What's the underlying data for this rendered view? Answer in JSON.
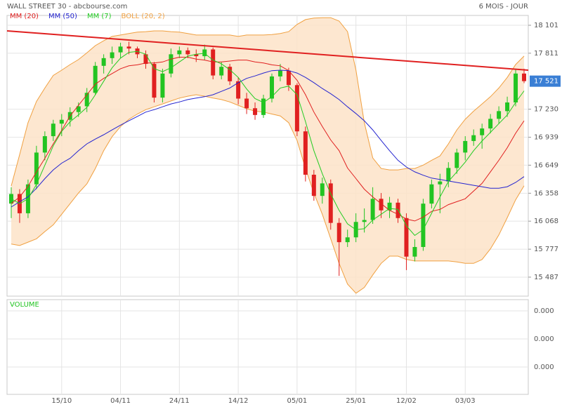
{
  "chart_data": {
    "type": "candlestick",
    "title": "WALL STREET 30 - abcbourse.com",
    "subtitle": "6 MOIS - JOUR",
    "categories": [
      null,
      null,
      null,
      null,
      null,
      null,
      "15/10",
      null,
      null,
      null,
      null,
      null,
      null,
      "04/11",
      null,
      null,
      null,
      null,
      null,
      null,
      "24/11",
      null,
      null,
      null,
      null,
      null,
      null,
      "14/12",
      null,
      null,
      null,
      null,
      null,
      null,
      "05/01",
      null,
      null,
      null,
      null,
      null,
      null,
      "25/01",
      null,
      null,
      null,
      null,
      null,
      "12/02",
      null,
      null,
      null,
      null,
      null,
      null,
      "03/03",
      null,
      null,
      null,
      null,
      null,
      null,
      null
    ],
    "ohlc": [
      [
        16250,
        16420,
        16100,
        16350
      ],
      [
        16350,
        16400,
        16050,
        16150
      ],
      [
        16150,
        16500,
        16100,
        16450
      ],
      [
        16450,
        16850,
        16400,
        16780
      ],
      [
        16780,
        17000,
        16700,
        16950
      ],
      [
        16950,
        17120,
        16900,
        17080
      ],
      [
        17080,
        17180,
        16950,
        17120
      ],
      [
        17120,
        17250,
        17050,
        17200
      ],
      [
        17200,
        17300,
        17150,
        17260
      ],
      [
        17260,
        17450,
        17200,
        17400
      ],
      [
        17400,
        17720,
        17380,
        17680
      ],
      [
        17680,
        17800,
        17600,
        17760
      ],
      [
        17760,
        17880,
        17700,
        17820
      ],
      [
        17820,
        17920,
        17760,
        17880
      ],
      [
        17880,
        17930,
        17800,
        17860
      ],
      [
        17860,
        17880,
        17760,
        17800
      ],
      [
        17800,
        17840,
        17650,
        17700
      ],
      [
        17700,
        17720,
        17300,
        17350
      ],
      [
        17350,
        17650,
        17300,
        17600
      ],
      [
        17600,
        17860,
        17560,
        17800
      ],
      [
        17800,
        17880,
        17760,
        17840
      ],
      [
        17840,
        17870,
        17760,
        17800
      ],
      [
        17800,
        17850,
        17720,
        17780
      ],
      [
        17780,
        17900,
        17740,
        17850
      ],
      [
        17850,
        17870,
        17540,
        17580
      ],
      [
        17580,
        17720,
        17540,
        17670
      ],
      [
        17670,
        17700,
        17480,
        17520
      ],
      [
        17520,
        17560,
        17280,
        17340
      ],
      [
        17340,
        17400,
        17180,
        17240
      ],
      [
        17240,
        17300,
        17120,
        17170
      ],
      [
        17170,
        17380,
        17140,
        17340
      ],
      [
        17340,
        17600,
        17300,
        17570
      ],
      [
        17570,
        17700,
        17520,
        17630
      ],
      [
        17630,
        17660,
        17420,
        17480
      ],
      [
        17480,
        17500,
        16950,
        17000
      ],
      [
        17000,
        17050,
        16480,
        16550
      ],
      [
        16550,
        16600,
        16280,
        16330
      ],
      [
        16330,
        16520,
        16250,
        16460
      ],
      [
        16460,
        16500,
        15980,
        16050
      ],
      [
        16050,
        16100,
        15500,
        15850
      ],
      [
        15850,
        15980,
        15800,
        15900
      ],
      [
        15900,
        16150,
        15850,
        16060
      ],
      [
        16060,
        16200,
        15950,
        16080
      ],
      [
        16080,
        16420,
        16040,
        16300
      ],
      [
        16300,
        16360,
        16100,
        16180
      ],
      [
        16180,
        16320,
        16100,
        16260
      ],
      [
        16260,
        16300,
        16050,
        16100
      ],
      [
        16100,
        16150,
        15560,
        15700
      ],
      [
        15700,
        15880,
        15650,
        15800
      ],
      [
        15800,
        16300,
        15760,
        16250
      ],
      [
        16250,
        16500,
        16200,
        16450
      ],
      [
        16450,
        16560,
        16150,
        16480
      ],
      [
        16480,
        16680,
        16420,
        16620
      ],
      [
        16620,
        16820,
        16560,
        16780
      ],
      [
        16780,
        16950,
        16700,
        16900
      ],
      [
        16900,
        17020,
        16850,
        16960
      ],
      [
        16960,
        17080,
        16820,
        17030
      ],
      [
        17030,
        17180,
        16980,
        17130
      ],
      [
        17130,
        17260,
        17080,
        17210
      ],
      [
        17210,
        17360,
        17150,
        17300
      ],
      [
        17300,
        17650,
        17260,
        17600
      ],
      [
        17600,
        17650,
        17500,
        17521
      ]
    ],
    "up_color": "#22c422",
    "down_color": "#e02020",
    "series": [
      {
        "name": "MM (20)",
        "color": "#e02020",
        "values": [
          16250,
          16320,
          16430,
          16580,
          16720,
          16870,
          17010,
          17160,
          17270,
          17380,
          17490,
          17550,
          17600,
          17650,
          17680,
          17690,
          17710,
          17710,
          17720,
          17750,
          17770,
          17770,
          17750,
          17740,
          17720,
          17720,
          17730,
          17740,
          17740,
          17720,
          17710,
          17690,
          17680,
          17630,
          17530,
          17380,
          17200,
          17050,
          16910,
          16800,
          16620,
          16510,
          16400,
          16320,
          16250,
          16180,
          16140,
          16090,
          16070,
          16110,
          16170,
          16190,
          16240,
          16270,
          16300,
          16380,
          16460,
          16580,
          16700,
          16830,
          16980,
          17110
        ]
      },
      {
        "name": "MM (50)",
        "color": "#2424d0",
        "values": [
          16215,
          16270,
          16320,
          16410,
          16510,
          16600,
          16670,
          16720,
          16800,
          16870,
          16920,
          16965,
          17015,
          17065,
          17110,
          17155,
          17200,
          17225,
          17255,
          17285,
          17305,
          17330,
          17345,
          17360,
          17380,
          17415,
          17450,
          17505,
          17550,
          17575,
          17605,
          17630,
          17635,
          17630,
          17605,
          17560,
          17505,
          17445,
          17390,
          17330,
          17255,
          17185,
          17110,
          17015,
          16905,
          16800,
          16700,
          16630,
          16580,
          16545,
          16515,
          16500,
          16485,
          16470,
          16455,
          16440,
          16425,
          16410,
          16410,
          16425,
          16470,
          16530
        ]
      },
      {
        "name": "MM (7)",
        "color": "#22cc22",
        "values": [
          16300,
          16250,
          16300,
          16450,
          16650,
          16850,
          17000,
          17100,
          17170,
          17250,
          17380,
          17520,
          17660,
          17760,
          17820,
          17830,
          17800,
          17650,
          17620,
          17660,
          17720,
          17780,
          17800,
          17810,
          17740,
          17700,
          17640,
          17560,
          17440,
          17340,
          17300,
          17360,
          17450,
          17470,
          17380,
          17100,
          16800,
          16560,
          16350,
          16180,
          16040,
          15980,
          15990,
          16080,
          16140,
          16200,
          16190,
          16020,
          15920,
          15980,
          16150,
          16320,
          16480,
          16580,
          16680,
          16800,
          16900,
          16990,
          17080,
          17170,
          17300,
          17420
        ]
      },
      {
        "name": "BOLL (20, 2)",
        "color": "#f0a040",
        "fill": "#fde3c8",
        "upper": [
          16433,
          16760,
          17090,
          17310,
          17450,
          17580,
          17635,
          17693,
          17745,
          17815,
          17890,
          17940,
          17985,
          18000,
          18015,
          18030,
          18035,
          18043,
          18043,
          18035,
          18030,
          18015,
          18000,
          18000,
          18000,
          18000,
          18000,
          17985,
          18000,
          18000,
          18000,
          18005,
          18015,
          18035,
          18110,
          18160,
          18175,
          18180,
          18180,
          18145,
          18035,
          17635,
          17090,
          16725,
          16615,
          16600,
          16600,
          16615,
          16615,
          16650,
          16700,
          16745,
          16870,
          17015,
          17125,
          17210,
          17285,
          17360,
          17450,
          17560,
          17693,
          17781
        ],
        "lower": [
          15830,
          15815,
          15850,
          15885,
          15960,
          16030,
          16140,
          16250,
          16360,
          16455,
          16615,
          16800,
          16945,
          17050,
          17125,
          17180,
          17225,
          17255,
          17285,
          17315,
          17345,
          17365,
          17380,
          17365,
          17345,
          17330,
          17305,
          17270,
          17235,
          17210,
          17200,
          17180,
          17160,
          17090,
          16905,
          16615,
          16360,
          16140,
          15885,
          15630,
          15415,
          15320,
          15380,
          15510,
          15630,
          15705,
          15705,
          15670,
          15655,
          15655,
          15655,
          15655,
          15655,
          15645,
          15630,
          15630,
          15670,
          15780,
          15925,
          16105,
          16290,
          16435
        ]
      }
    ],
    "trendline": {
      "color": "#e02020",
      "values": [
        18043,
        17635
      ]
    },
    "last": {
      "value": 17521,
      "label": "17 521",
      "color": "#3a7fd5"
    },
    "ylim": [
      15290,
      18203
    ],
    "yticks": [
      {
        "value": 18101,
        "label": "18 101"
      },
      {
        "value": 17811,
        "label": "17 811"
      },
      {
        "value": 17230,
        "label": "17 230"
      },
      {
        "value": 16939,
        "label": "16 939"
      },
      {
        "value": 16649,
        "label": "16 649"
      },
      {
        "value": 16358,
        "label": "16 358"
      },
      {
        "value": 16068,
        "label": "16 068"
      },
      {
        "value": 15777,
        "label": "15 777"
      },
      {
        "value": 15487,
        "label": "15 487"
      }
    ],
    "grid": true,
    "volume": {
      "title": "VOLUME",
      "color": "#22c422",
      "ylim": [
        -9.75e-05,
        0.00024
      ],
      "yticks": [
        {
          "value": 0.0002,
          "label": "0.000"
        },
        {
          "value": 0.0001,
          "label": "0.000"
        },
        {
          "value": 0,
          "label": "0.000"
        }
      ]
    }
  }
}
